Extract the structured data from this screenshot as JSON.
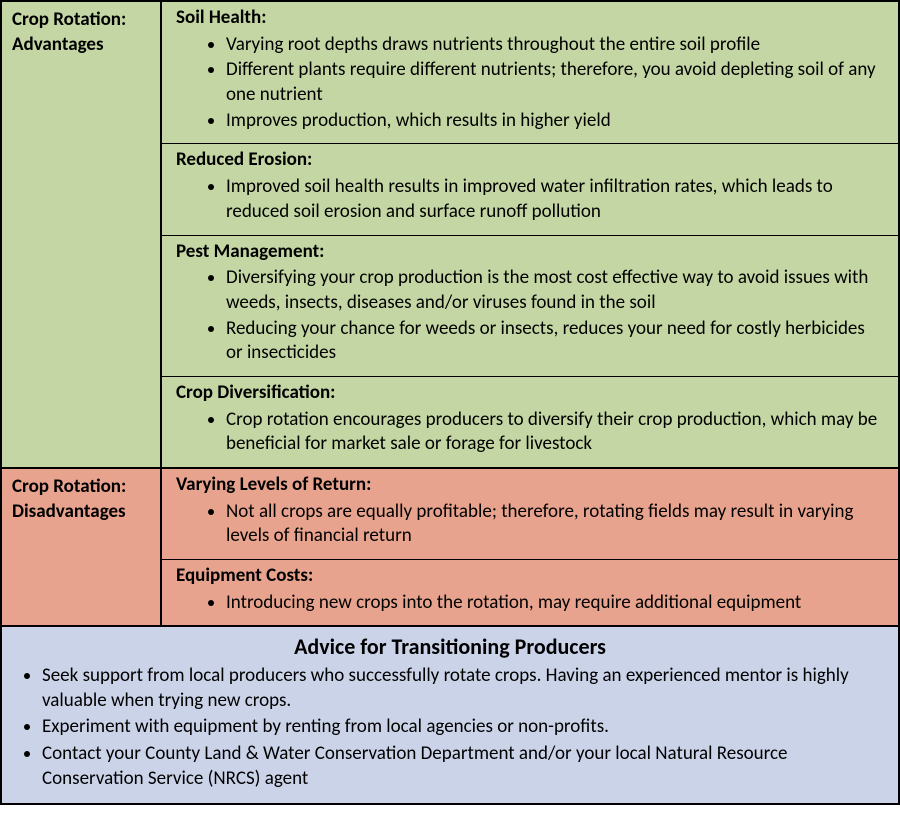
{
  "colors": {
    "green": "#c4d6a3",
    "salmon": "#e8a38e",
    "blue": "#cbd3e8",
    "border": "#000000",
    "text": "#000000"
  },
  "typography": {
    "body_fontsize": 19,
    "title_fontsize": 22,
    "font_family": "Calibri"
  },
  "advantages": {
    "label": "Crop Rotation: Advantages",
    "cells": [
      {
        "title": "Soil Health:",
        "bullets": [
          "Varying root depths draws nutrients throughout the entire soil profile",
          "Different plants require different nutrients; therefore, you avoid depleting soil of any one nutrient",
          "Improves production, which results in higher yield"
        ]
      },
      {
        "title": "Reduced Erosion:",
        "bullets": [
          "Improved soil health results in improved water infiltration rates, which leads to reduced soil erosion and surface runoff pollution"
        ]
      },
      {
        "title": "Pest Management:",
        "bullets": [
          "Diversifying your crop production is the most cost effective way to avoid issues with weeds, insects, diseases and/or viruses found in the soil",
          "Reducing your chance for weeds or insects, reduces your need for costly herbicides or insecticides"
        ]
      },
      {
        "title": "Crop Diversification:",
        "bullets": [
          "Crop rotation encourages producers to diversify their crop production, which may be beneficial for market sale or forage for livestock"
        ]
      }
    ]
  },
  "disadvantages": {
    "label": "Crop Rotation: Disadvantages",
    "cells": [
      {
        "title": "Varying Levels of Return:",
        "bullets": [
          "Not all crops are equally profitable; therefore, rotating fields may result in varying levels of financial return"
        ]
      },
      {
        "title": "Equipment Costs:",
        "bullets": [
          "Introducing new crops into the rotation, may require additional equipment"
        ]
      }
    ]
  },
  "advice": {
    "title": "Advice for Transitioning Producers",
    "bullets": [
      "Seek support from local producers who successfully rotate crops. Having an experienced mentor is highly valuable when trying new crops.",
      "Experiment with equipment by renting from local agencies or non-profits.",
      "Contact your County Land & Water Conservation Department and/or your local Natural Resource Conservation Service (NRCS) agent"
    ]
  }
}
